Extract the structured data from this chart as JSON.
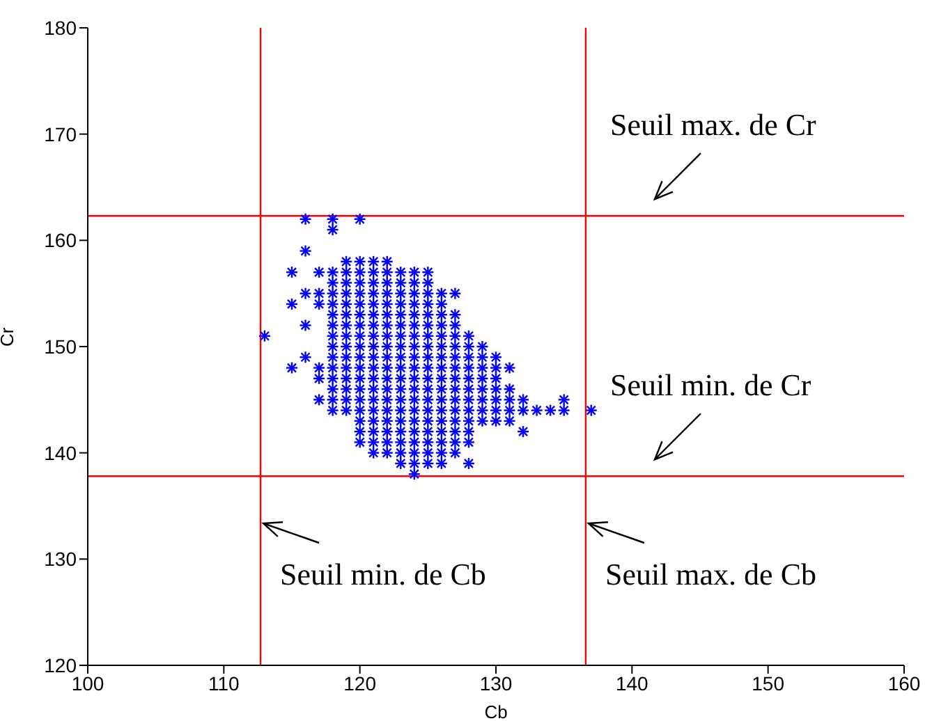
{
  "chart_data": {
    "type": "scatter",
    "xlabel": "Cb",
    "ylabel": "Cr",
    "xlim": [
      100,
      160
    ],
    "xticks": [
      100,
      110,
      120,
      130,
      140,
      150,
      160
    ],
    "ylim": [
      120,
      180
    ],
    "yticks": [
      120,
      130,
      140,
      150,
      160,
      170,
      180
    ],
    "grid": false,
    "marker": "cross",
    "series": [
      {
        "color": "#0000ff",
        "x": [
          120,
          121,
          122,
          123,
          124,
          125,
          126,
          127,
          128,
          129,
          130,
          131,
          132,
          113,
          116,
          118,
          118,
          120,
          116,
          115,
          117,
          125,
          115,
          116,
          127,
          116,
          115,
          117,
          118,
          119,
          124,
          123,
          126,
          128,
          120,
          132,
          133,
          134,
          135,
          135,
          137,
          131,
          132,
          119,
          120,
          121,
          122,
          118,
          119,
          120,
          121,
          122,
          123,
          124,
          118,
          119,
          120,
          121,
          122,
          123,
          124,
          125,
          117,
          118,
          119,
          120,
          121,
          122,
          123,
          124,
          125,
          126,
          117,
          118,
          119,
          120,
          121,
          122,
          123,
          124,
          125,
          126,
          118,
          119,
          120,
          121,
          122,
          123,
          124,
          125,
          126,
          127,
          118,
          119,
          120,
          121,
          122,
          123,
          124,
          125,
          126,
          127,
          118,
          119,
          120,
          121,
          122,
          123,
          124,
          125,
          126,
          127,
          128,
          118,
          119,
          120,
          121,
          122,
          123,
          124,
          125,
          126,
          127,
          128,
          129,
          116,
          118,
          119,
          120,
          121,
          122,
          123,
          124,
          125,
          126,
          127,
          128,
          129,
          130,
          117,
          118,
          119,
          120,
          121,
          122,
          123,
          124,
          125,
          126,
          127,
          128,
          129,
          130,
          131,
          117,
          118,
          119,
          120,
          121,
          122,
          123,
          124,
          125,
          126,
          127,
          128,
          129,
          130,
          118,
          119,
          120,
          121,
          122,
          123,
          124,
          125,
          126,
          127,
          128,
          129,
          130,
          131,
          118,
          119,
          120,
          121,
          122,
          123,
          124,
          125,
          126,
          127,
          128,
          129,
          130,
          131,
          120,
          121,
          122,
          123,
          124,
          125,
          126,
          127,
          128,
          129,
          130,
          120,
          121,
          122,
          123,
          124,
          125,
          126,
          127,
          128,
          121,
          122,
          123,
          124,
          125,
          126,
          127,
          128,
          121,
          122,
          123,
          124,
          125,
          126,
          127,
          124,
          125
        ],
        "values": [
          144,
          144,
          144,
          144,
          144,
          144,
          144,
          144,
          144,
          144,
          144,
          144,
          144,
          151,
          162,
          162,
          161,
          162,
          159,
          157,
          157,
          157,
          154,
          155,
          155,
          152,
          148,
          145,
          144,
          144,
          138,
          139,
          139,
          139,
          141,
          142,
          144,
          144,
          144,
          145,
          144,
          143,
          145,
          158,
          158,
          158,
          158,
          157,
          157,
          157,
          157,
          157,
          157,
          157,
          156,
          156,
          156,
          156,
          156,
          156,
          156,
          156,
          155,
          155,
          155,
          155,
          155,
          155,
          155,
          155,
          155,
          155,
          154,
          154,
          154,
          154,
          154,
          154,
          154,
          154,
          154,
          154,
          153,
          153,
          153,
          153,
          153,
          153,
          153,
          153,
          153,
          153,
          152,
          152,
          152,
          152,
          152,
          152,
          152,
          152,
          152,
          152,
          151,
          151,
          151,
          151,
          151,
          151,
          151,
          151,
          151,
          151,
          151,
          150,
          150,
          150,
          150,
          150,
          150,
          150,
          150,
          150,
          150,
          150,
          150,
          149,
          149,
          149,
          149,
          149,
          149,
          149,
          149,
          149,
          149,
          149,
          149,
          149,
          149,
          148,
          148,
          148,
          148,
          148,
          148,
          148,
          148,
          148,
          148,
          148,
          148,
          148,
          148,
          148,
          147,
          147,
          147,
          147,
          147,
          147,
          147,
          147,
          147,
          147,
          147,
          147,
          147,
          147,
          146,
          146,
          146,
          146,
          146,
          146,
          146,
          146,
          146,
          146,
          146,
          146,
          146,
          146,
          145,
          145,
          145,
          145,
          145,
          145,
          145,
          145,
          145,
          145,
          145,
          145,
          145,
          145,
          143,
          143,
          143,
          143,
          143,
          143,
          143,
          143,
          143,
          143,
          143,
          142,
          142,
          142,
          142,
          142,
          142,
          142,
          142,
          142,
          141,
          141,
          141,
          141,
          141,
          141,
          141,
          141,
          140,
          140,
          140,
          140,
          140,
          140,
          140,
          139,
          139
        ]
      }
    ],
    "ref_lines": [
      {
        "axis": "x",
        "value": 112.7,
        "label": "Seuil min. de Cb",
        "color": "#ff0000"
      },
      {
        "axis": "x",
        "value": 136.6,
        "label": "Seuil max. de Cb",
        "color": "#ff0000"
      },
      {
        "axis": "y",
        "value": 162.3,
        "label": "Seuil max. de Cr",
        "color": "#ff0000"
      },
      {
        "axis": "y",
        "value": 137.8,
        "label": "Seuil min. de Cr",
        "color": "#ff0000"
      }
    ]
  }
}
